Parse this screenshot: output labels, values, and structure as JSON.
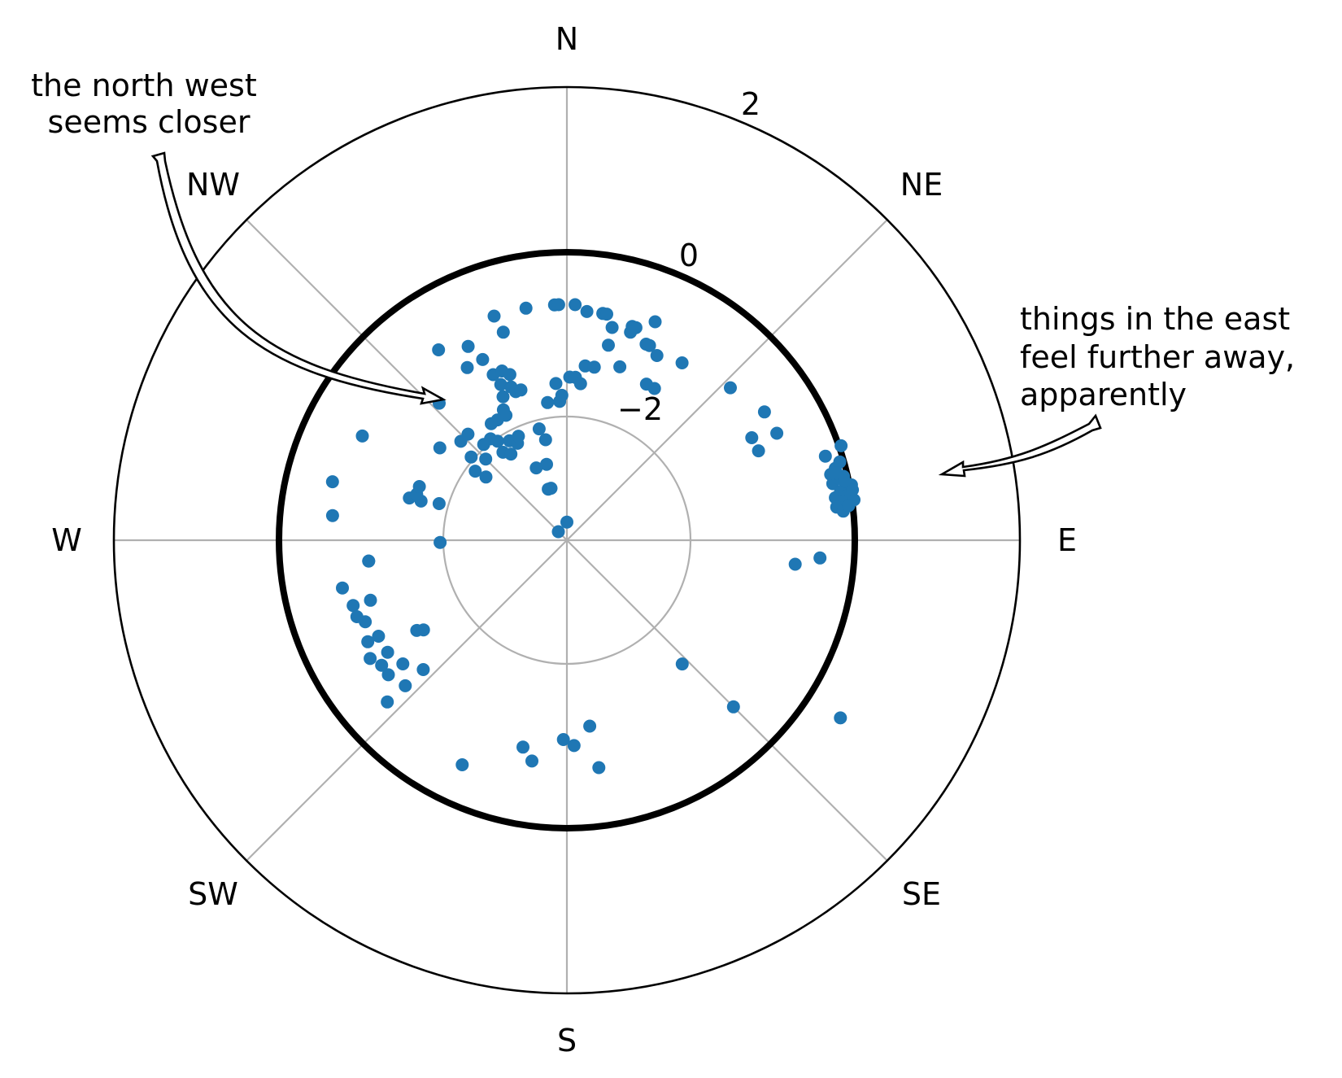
{
  "chart_data": {
    "type": "scatter",
    "projection": "polar",
    "theta_zero": "N",
    "theta_direction": "clockwise",
    "rmin": -4,
    "rmax": 3.5,
    "radial_ticks": [
      -2,
      0,
      2
    ],
    "radial_tick_labels": [
      "−2",
      "0",
      "2"
    ],
    "highlighted_ring_r": 0,
    "direction_labels": [
      "N",
      "NE",
      "E",
      "SE",
      "S",
      "SW",
      "W",
      "NW"
    ],
    "series": [
      {
        "color": "#1f77b4",
        "points": [
          {
            "theta": 357,
            "r": -0.1
          },
          {
            "theta": 350,
            "r": -0.1
          },
          {
            "theta": 2,
            "r": -0.1
          },
          {
            "theta": 5,
            "r": -0.2
          },
          {
            "theta": 9,
            "r": -0.2
          },
          {
            "theta": 10,
            "r": -0.2
          },
          {
            "theta": 17,
            "r": -0.3
          },
          {
            "theta": 18,
            "r": -0.3
          },
          {
            "theta": 22,
            "r": -0.1
          },
          {
            "theta": 22,
            "r": -0.5
          },
          {
            "theta": 23,
            "r": -0.5
          },
          {
            "theta": 26,
            "r": -0.6
          },
          {
            "theta": 12,
            "r": -0.7
          },
          {
            "theta": 12,
            "r": -0.4
          },
          {
            "theta": 17,
            "r": -0.4
          },
          {
            "theta": 33,
            "r": -0.5
          },
          {
            "theta": 47,
            "r": -0.3
          },
          {
            "theta": 63,
            "r": -0.1
          },
          {
            "theta": 65,
            "r": -0.5
          },
          {
            "theta": 343,
            "r": -0.4
          },
          {
            "theta": 342,
            "r": -0.1
          },
          {
            "theta": 333,
            "r": -0.4
          },
          {
            "theta": 335,
            "r": -0.7
          },
          {
            "theta": 330,
            "r": -0.7
          },
          {
            "theta": 326,
            "r": -0.2
          },
          {
            "theta": 317,
            "r": -0.9
          },
          {
            "theta": 336,
            "r": -1.0
          },
          {
            "theta": 339,
            "r": -1.0
          },
          {
            "theta": 341,
            "r": -1.1
          },
          {
            "theta": 337,
            "r": -1.2
          },
          {
            "theta": 340,
            "r": -1.3
          },
          {
            "theta": 341,
            "r": -1.4
          },
          {
            "theta": 336,
            "r": -1.4
          },
          {
            "theta": 334,
            "r": -1.6
          },
          {
            "theta": 343,
            "r": -1.4
          },
          {
            "theta": 352,
            "r": -1.7
          },
          {
            "theta": 356,
            "r": -1.4
          },
          {
            "theta": 357,
            "r": -1.7
          },
          {
            "theta": 358,
            "r": -1.6
          },
          {
            "theta": 1,
            "r": -1.3
          },
          {
            "theta": 3,
            "r": -1.3
          },
          {
            "theta": 5,
            "r": -1.4
          },
          {
            "theta": 6,
            "r": -1.1
          },
          {
            "theta": 9,
            "r": -1.1
          },
          {
            "theta": 17,
            "r": -1.0
          },
          {
            "theta": 27,
            "r": -1.1
          },
          {
            "theta": 30,
            "r": -1.1
          },
          {
            "theta": 334,
            "r": -1.7
          },
          {
            "theta": 330,
            "r": -1.7
          },
          {
            "theta": 327,
            "r": -1.7
          },
          {
            "theta": 323,
            "r": -1.9
          },
          {
            "theta": 319,
            "r": -1.9
          },
          {
            "theta": 317,
            "r": -1.6
          },
          {
            "theta": 313,
            "r": -1.6
          },
          {
            "theta": 315,
            "r": -2.1
          },
          {
            "theta": 311,
            "r": -1.9
          },
          {
            "theta": 306,
            "r": -1.4
          },
          {
            "theta": 307,
            "r": -2.1
          },
          {
            "theta": 308,
            "r": -2.3
          },
          {
            "theta": 325,
            "r": -2.0
          },
          {
            "theta": 324,
            "r": -2.2
          },
          {
            "theta": 327,
            "r": -2.3
          },
          {
            "theta": 330,
            "r": -2.1
          },
          {
            "theta": 333,
            "r": -2.2
          },
          {
            "theta": 335,
            "r": -2.1
          },
          {
            "theta": 346,
            "r": -2.1
          },
          {
            "theta": 348,
            "r": -2.3
          },
          {
            "theta": 345,
            "r": -2.7
          },
          {
            "theta": 337,
            "r": -2.7
          },
          {
            "theta": 343,
            "r": -3.1
          },
          {
            "theta": 340,
            "r": -3.1
          },
          {
            "theta": 315,
            "r": -3.8
          },
          {
            "theta": 297,
            "r": -0.2
          },
          {
            "theta": 284,
            "r": 0.0
          },
          {
            "theta": 285,
            "r": -1.3
          },
          {
            "theta": 285,
            "r": -1.5
          },
          {
            "theta": 287,
            "r": -1.4
          },
          {
            "theta": 290,
            "r": -1.4
          },
          {
            "theta": 286,
            "r": -1.8
          },
          {
            "theta": 276,
            "r": -0.1
          },
          {
            "theta": 269,
            "r": -1.9
          },
          {
            "theta": 264,
            "r": -0.7
          },
          {
            "theta": 264,
            "r": -0.7
          },
          {
            "theta": 258,
            "r": -0.2
          },
          {
            "theta": 253,
            "r": -0.3
          },
          {
            "theta": 253,
            "r": -0.6
          },
          {
            "theta": 250,
            "r": -0.3
          },
          {
            "theta": 248,
            "r": -0.4
          },
          {
            "theta": 243,
            "r": -0.5
          },
          {
            "theta": 243,
            "r": -0.3
          },
          {
            "theta": 239,
            "r": -0.2
          },
          {
            "theta": 238,
            "r": -0.5
          },
          {
            "theta": 233,
            "r": -0.6
          },
          {
            "theta": 236,
            "r": -0.3
          },
          {
            "theta": 233,
            "r": -0.3
          },
          {
            "theta": 228,
            "r": -0.4
          },
          {
            "theta": 228,
            "r": 0.0
          },
          {
            "theta": 239,
            "r": -1.1
          },
          {
            "theta": 238,
            "r": -1.2
          },
          {
            "theta": 228,
            "r": -0.8
          },
          {
            "theta": 192,
            "r": -0.5
          },
          {
            "theta": 189,
            "r": -0.3
          },
          {
            "theta": 181,
            "r": -0.7
          },
          {
            "theta": 178,
            "r": -0.6
          },
          {
            "theta": 173,
            "r": -0.9
          },
          {
            "theta": 172,
            "r": -0.2
          },
          {
            "theta": 205,
            "r": 0.1
          },
          {
            "theta": 137,
            "r": -1.2
          },
          {
            "theta": 135,
            "r": -0.1
          },
          {
            "theta": 94,
            "r": 0.2
          },
          {
            "theta": 96,
            "r": -0.2
          },
          {
            "theta": 57,
            "r": -0.1
          },
          {
            "theta": 61,
            "r": -0.5
          },
          {
            "theta": 123,
            "r": 1.4
          },
          {
            "theta": 74,
            "r": 0.7
          },
          {
            "theta": 75,
            "r": 0.6
          },
          {
            "theta": 76,
            "r": 0.5
          },
          {
            "theta": 77,
            "r": 0.7
          },
          {
            "theta": 78,
            "r": 0.5
          },
          {
            "theta": 79,
            "r": 0.7
          },
          {
            "theta": 80,
            "r": 0.6
          },
          {
            "theta": 81,
            "r": 0.5
          },
          {
            "theta": 81,
            "r": 0.7
          },
          {
            "theta": 82,
            "r": 0.6
          },
          {
            "theta": 83,
            "r": 0.5
          },
          {
            "theta": 84,
            "r": 0.6
          },
          {
            "theta": 79,
            "r": 0.8
          },
          {
            "theta": 82,
            "r": 0.8
          },
          {
            "theta": 77,
            "r": 0.6
          },
          {
            "theta": 80,
            "r": 0.8
          },
          {
            "theta": 83,
            "r": 0.7
          },
          {
            "theta": 78,
            "r": 0.7
          },
          {
            "theta": 76,
            "r": 0.6
          },
          {
            "theta": 72,
            "r": 0.5
          },
          {
            "theta": 71,
            "r": 0.8
          },
          {
            "theta": 358,
            "r": -0.1
          },
          {
            "theta": 0,
            "r": -3.7
          }
        ]
      }
    ],
    "annotations": [
      {
        "lines": [
          "the north west",
          "seems closer"
        ]
      },
      {
        "lines": [
          "things in the east",
          "feel further away,",
          "apparently"
        ]
      }
    ]
  }
}
